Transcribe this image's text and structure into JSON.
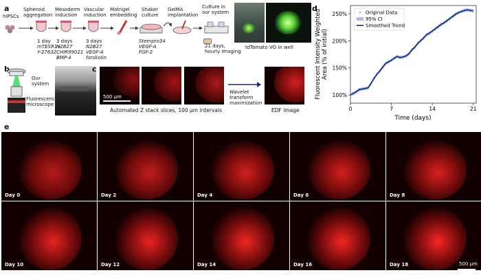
{
  "panel_letters": {
    "a": "a",
    "b": "b",
    "c": "c",
    "d": "d",
    "e": "e"
  },
  "panel_a": {
    "steps": [
      {
        "label": "hiPSCs"
      },
      {
        "label": "Spheroid aggregation",
        "duration": "1 day",
        "reagents": "mTESR1+\nY-27632"
      },
      {
        "label": "Mesoderm induction",
        "duration": "3 days",
        "reagents": "N2B27\nCHIR99021\nBMP-4"
      },
      {
        "label": "Vascular induction",
        "duration": "3 days",
        "reagents": "N2B27\nVEGF-A\nforskolin"
      },
      {
        "label": "Matrigel embedding"
      },
      {
        "label": "Shaker culture",
        "reagents": "Stempro34\nVEGF-A\nFGF-2"
      },
      {
        "label": "GelMA implantation"
      },
      {
        "label": "Culture in our system",
        "duration": "21 days,\nhourly imaging"
      }
    ],
    "photo_caption": "tdTomato VO in well"
  },
  "panel_b": {
    "system_label": "Our\nsystem",
    "microscope_label": "Fluorescence\nmicroscope"
  },
  "panel_c": {
    "scale_bar": "500 µm",
    "slices_caption": "Automated Z stack slices, 100 µm intervals",
    "arrow_label": "Wavelet\ntransform\nmaximization",
    "edf_caption": "EDF image"
  },
  "panel_d": {
    "chart_data": {
      "type": "line",
      "ylabel": "Fluorescent Intensity Weighted\nArea (% of initial)",
      "xlabel": "Time (days)",
      "xlim": [
        0,
        21.5
      ],
      "ylim": [
        85,
        265
      ],
      "xticks": [
        0,
        7,
        14,
        21
      ],
      "yticks": [
        100,
        150,
        200,
        250
      ],
      "ytick_labels": [
        "100%",
        "150%",
        "200%",
        "250%"
      ],
      "legend": [
        "Original Data",
        "95% CI",
        "Smoothed Trend"
      ],
      "legend_position": "top-left",
      "series": [
        {
          "name": "Smoothed Trend",
          "x": [
            0,
            0.5,
            1,
            1.5,
            2,
            2.5,
            3,
            3.5,
            4,
            4.5,
            5,
            5.5,
            6,
            6.5,
            7,
            7.5,
            8,
            8.5,
            9,
            9.5,
            10,
            10.5,
            11,
            11.5,
            12,
            12.5,
            13,
            13.5,
            14,
            14.5,
            15,
            15.5,
            16,
            16.5,
            17,
            17.5,
            18,
            18.5,
            19,
            19.5,
            20,
            20.5,
            21
          ],
          "y": [
            100,
            103,
            106,
            110,
            111,
            112,
            113,
            121,
            130,
            138,
            144,
            151,
            158,
            161,
            164,
            168,
            171,
            169,
            170,
            172,
            176,
            183,
            188,
            195,
            200,
            205,
            211,
            214,
            218,
            222,
            226,
            230,
            233,
            237,
            241,
            245,
            249,
            252,
            254,
            256,
            257,
            256,
            255
          ]
        }
      ]
    }
  },
  "panel_e": {
    "days": [
      "Day 0",
      "Day 2",
      "Day 4",
      "Day 6",
      "Day 8",
      "Day 10",
      "Day 12",
      "Day 14",
      "Day 16",
      "Day 18"
    ],
    "scale_bar": "500 µm"
  },
  "colors": {
    "red": "#e0141b",
    "trend": "#0a2a6e",
    "ci": "#8e9bf0"
  }
}
